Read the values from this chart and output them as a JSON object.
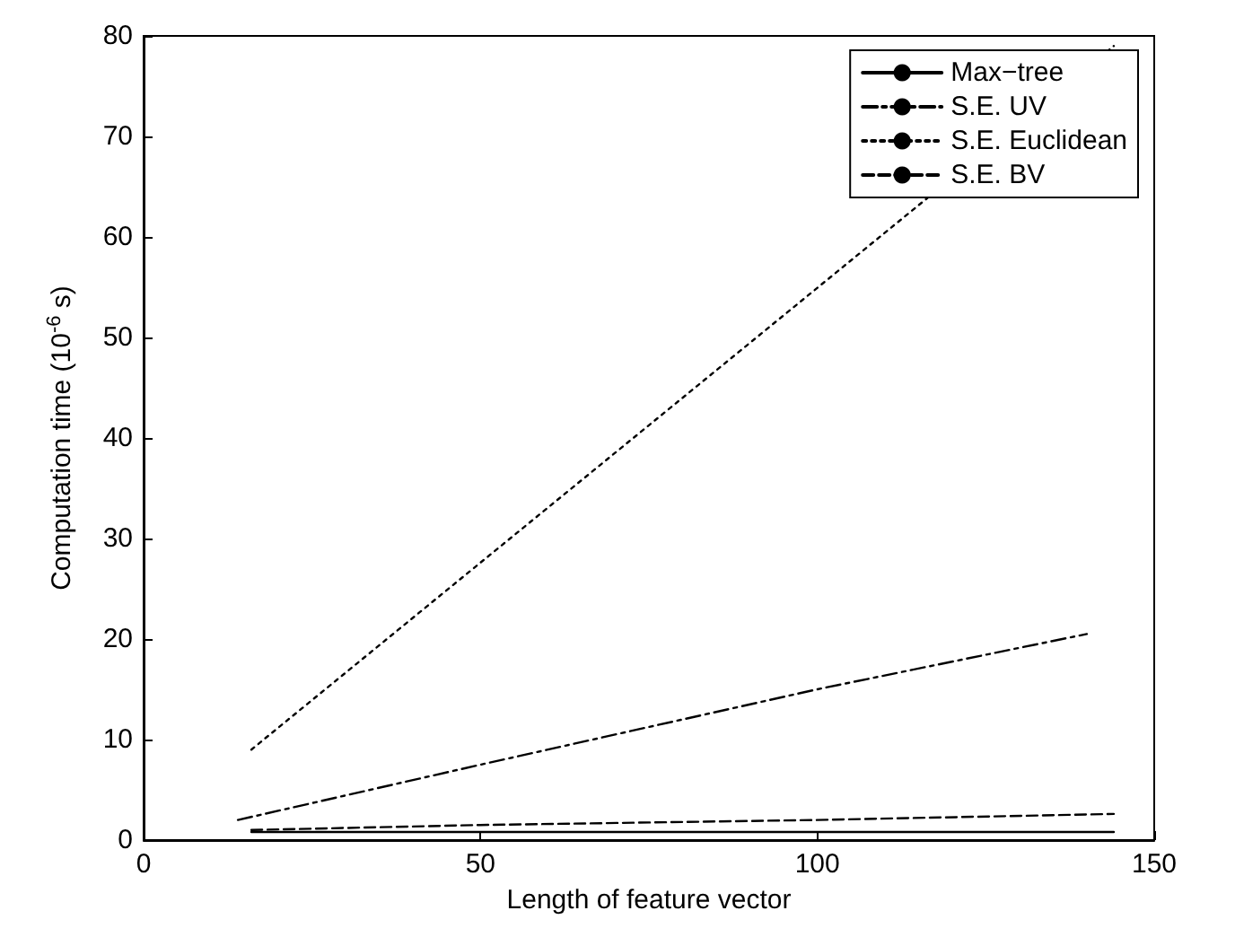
{
  "chart_data": {
    "type": "line",
    "xlabel": "Length of feature vector",
    "ylabel": "Computation time (10$^{-6}$ s)",
    "xlim": [
      0,
      150
    ],
    "xticks": [
      0,
      50,
      100,
      150
    ],
    "ylim": [
      0,
      80
    ],
    "yticks": [
      0,
      10,
      20,
      30,
      40,
      50,
      60,
      70,
      80
    ],
    "grid": false,
    "legend": "top right",
    "marker": "none",
    "series": [
      {
        "name": "Max−tree",
        "color": "#000000",
        "line_style": "solid",
        "x": [
          16,
          144
        ],
        "values": [
          0.8,
          0.8
        ]
      },
      {
        "name": "S.E. UV",
        "color": "#000000",
        "line_style": "dashdot",
        "x": [
          14,
          50,
          100,
          140
        ],
        "values": [
          2,
          7.5,
          15,
          20.5
        ]
      },
      {
        "name": "S.E. Euclidean",
        "color": "#000000",
        "line_style": "dotted",
        "x": [
          16,
          50,
          80,
          144
        ],
        "values": [
          9,
          27.6,
          44,
          79
        ]
      },
      {
        "name": "S.E. BV",
        "color": "#000000",
        "line_style": "dashed",
        "x": [
          16,
          50,
          100,
          144
        ],
        "values": [
          1,
          1.5,
          2,
          2.6
        ]
      }
    ]
  }
}
